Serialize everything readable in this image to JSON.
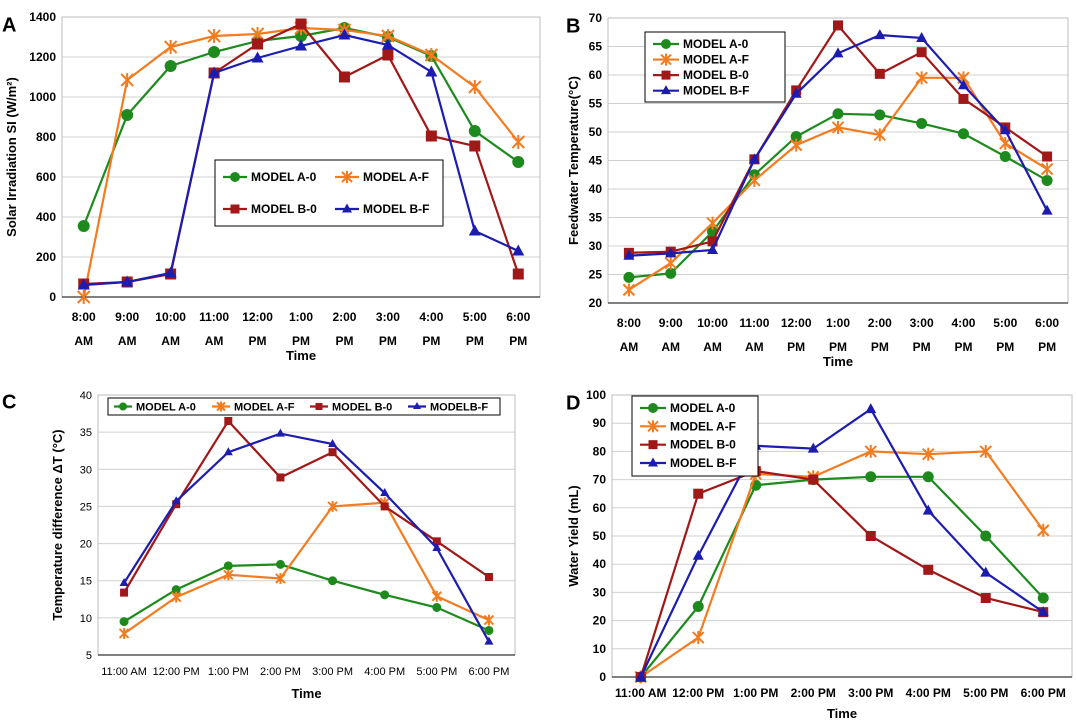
{
  "colors": {
    "A0": "#1e8a1e",
    "AF": "#f47c20",
    "B0": "#a01818",
    "BF": "#1c1cb0"
  },
  "chart_data": [
    {
      "id": "A",
      "panel_label": "A",
      "type": "line",
      "title": "",
      "xlabel": "Time",
      "ylabel": "Solar Irradiation SI (W/m²)",
      "ylim": [
        0,
        1400
      ],
      "yticks": [
        "0",
        "200",
        "400",
        "600",
        "800",
        "1000",
        "1200",
        "1400"
      ],
      "categories": [
        [
          "8:00",
          "AM"
        ],
        [
          "9:00",
          "AM"
        ],
        [
          "10:00",
          "AM"
        ],
        [
          "11:00",
          "AM"
        ],
        [
          "12:00",
          "PM"
        ],
        [
          "1:00",
          "PM"
        ],
        [
          "2:00",
          "PM"
        ],
        [
          "3:00",
          "PM"
        ],
        [
          "4:00",
          "PM"
        ],
        [
          "5:00",
          "PM"
        ],
        [
          "6:00",
          "PM"
        ]
      ],
      "series": [
        {
          "key": "A0",
          "name": "MODEL A-0",
          "marker": "circle",
          "values": [
            355,
            910,
            1155,
            1225,
            1280,
            1305,
            1345,
            1300,
            1205,
            830,
            675
          ]
        },
        {
          "key": "AF",
          "name": "MODEL A-F",
          "marker": "star",
          "values": [
            0,
            1085,
            1250,
            1305,
            1315,
            1345,
            1335,
            1305,
            1210,
            1050,
            775
          ]
        },
        {
          "key": "B0",
          "name": "MODEL B-0",
          "marker": "square",
          "values": [
            65,
            75,
            115,
            1120,
            1265,
            1365,
            1100,
            1210,
            805,
            755,
            115
          ]
        },
        {
          "key": "BF",
          "name": "MODEL B-F",
          "marker": "triangle",
          "values": [
            60,
            75,
            120,
            1120,
            1195,
            1255,
            1310,
            1260,
            1125,
            330,
            230
          ]
        }
      ]
    },
    {
      "id": "B",
      "panel_label": "B",
      "type": "line",
      "title": "",
      "xlabel": "Time",
      "ylabel": "Feedwater Temperature(°C)",
      "ylim": [
        20,
        70
      ],
      "yticks": [
        "20",
        "25",
        "30",
        "35",
        "40",
        "45",
        "50",
        "55",
        "60",
        "65",
        "70"
      ],
      "categories": [
        [
          "8:00",
          "AM"
        ],
        [
          "9:00",
          "AM"
        ],
        [
          "10:00",
          "AM"
        ],
        [
          "11:00",
          "AM"
        ],
        [
          "12:00",
          "PM"
        ],
        [
          "1:00",
          "PM"
        ],
        [
          "2:00",
          "PM"
        ],
        [
          "3:00",
          "PM"
        ],
        [
          "4:00",
          "PM"
        ],
        [
          "5:00",
          "PM"
        ],
        [
          "6:00",
          "PM"
        ]
      ],
      "series": [
        {
          "key": "A0",
          "name": "MODEL A-0",
          "marker": "circle",
          "values": [
            24.5,
            25.2,
            32.5,
            42.5,
            49.2,
            53.2,
            53.0,
            51.5,
            49.7,
            45.7,
            41.5
          ]
        },
        {
          "key": "AF",
          "name": "MODEL A-F",
          "marker": "star",
          "values": [
            22.3,
            27.0,
            34.0,
            41.5,
            47.7,
            50.8,
            49.5,
            59.5,
            59.5,
            48.0,
            43.5
          ]
        },
        {
          "key": "B0",
          "name": "MODEL B-0",
          "marker": "square",
          "values": [
            28.8,
            29.0,
            30.8,
            45.2,
            57.3,
            68.7,
            60.2,
            64.0,
            55.8,
            50.8,
            45.7
          ]
        },
        {
          "key": "BF",
          "name": "MODEL B-F",
          "marker": "triangle",
          "values": [
            28.3,
            28.7,
            29.3,
            45.2,
            56.7,
            63.8,
            67.0,
            66.5,
            58.2,
            50.3,
            36.2
          ]
        }
      ]
    },
    {
      "id": "C",
      "panel_label": "C",
      "type": "line",
      "title": "",
      "xlabel": "Time",
      "ylabel": "Temperature difference ΔT (°C)",
      "ylim": [
        5,
        40
      ],
      "yticks": [
        "5",
        "10",
        "15",
        "20",
        "25",
        "30",
        "35",
        "40"
      ],
      "categories": [
        "11:00 AM",
        "12:00 PM",
        "1:00 PM",
        "2:00 PM",
        "3:00 PM",
        "4:00 PM",
        "5:00 PM",
        "6:00 PM"
      ],
      "series": [
        {
          "key": "A0",
          "name": "MODEL A-0",
          "marker": "circle",
          "values": [
            9.5,
            13.8,
            17.0,
            17.2,
            15.0,
            13.1,
            11.4,
            8.3
          ]
        },
        {
          "key": "AF",
          "name": "MODEL A-F",
          "marker": "star",
          "values": [
            7.9,
            12.8,
            15.8,
            15.3,
            25.0,
            25.5,
            12.9,
            9.7
          ]
        },
        {
          "key": "B0",
          "name": "MODEL B-0",
          "marker": "square",
          "values": [
            13.4,
            25.3,
            36.5,
            28.9,
            32.3,
            25.0,
            20.3,
            15.5
          ]
        },
        {
          "key": "BF",
          "name": "MODELB-F",
          "marker": "triangle",
          "values": [
            14.7,
            25.7,
            32.3,
            34.8,
            33.4,
            26.8,
            19.4,
            6.8
          ]
        }
      ]
    },
    {
      "id": "D",
      "panel_label": "D",
      "type": "line",
      "title": "",
      "xlabel": "Time",
      "ylabel": "Water Yield (mL)",
      "ylim": [
        0,
        100
      ],
      "yticks": [
        "0",
        "10",
        "20",
        "30",
        "40",
        "50",
        "60",
        "70",
        "80",
        "90",
        "100"
      ],
      "categories": [
        "11:00 AM",
        "12:00 PM",
        "1:00 PM",
        "2:00 PM",
        "3:00 PM",
        "4:00 PM",
        "5:00 PM",
        "6:00 PM"
      ],
      "series": [
        {
          "key": "A0",
          "name": "MODEL A-0",
          "marker": "circle",
          "values": [
            0,
            25,
            68,
            70,
            71,
            71,
            50,
            28
          ]
        },
        {
          "key": "AF",
          "name": "MODEL A-F",
          "marker": "star",
          "values": [
            0,
            14,
            72,
            71,
            80,
            79,
            80,
            52
          ]
        },
        {
          "key": "B0",
          "name": "MODEL B-0",
          "marker": "square",
          "values": [
            0,
            65,
            73,
            70,
            50,
            38,
            28,
            23
          ]
        },
        {
          "key": "BF",
          "name": "MODEL B-F",
          "marker": "triangle",
          "values": [
            0,
            43,
            82,
            81,
            95,
            59,
            37,
            23
          ]
        }
      ]
    }
  ]
}
